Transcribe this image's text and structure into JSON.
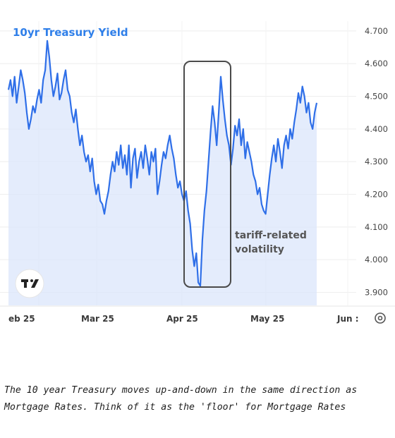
{
  "chart_data": {
    "type": "line",
    "title": "10yr Treasury Yield",
    "series_color": "#2f6fe8",
    "area_fill_color": "#dbe6fb",
    "x_tick_labels": [
      "eb 25",
      "Mar 25",
      "Apr 25",
      "May 25",
      "Jun :"
    ],
    "y_tick_labels": [
      "4.700",
      "4.600",
      "4.500",
      "4.400",
      "4.300",
      "4.200",
      "4.100",
      "4.000",
      "3.900"
    ],
    "ylim": [
      3.86,
      4.73
    ],
    "grid": true,
    "annotation": {
      "lines": [
        "tariff-related",
        "volatility"
      ]
    },
    "logo": "TV",
    "settings_icon": "gear-icon",
    "x_index_range": [
      0,
      160
    ],
    "x_tick_index": [
      4,
      47,
      89,
      131,
      173
    ],
    "annotation_box_index": [
      0.0,
      0.0
    ],
    "series": [
      {
        "values": [
          4.52,
          4.55,
          4.5,
          4.56,
          4.48,
          4.53,
          4.58,
          4.55,
          4.51,
          4.45,
          4.4,
          4.43,
          4.47,
          4.45,
          4.49,
          4.52,
          4.48,
          4.55,
          4.58,
          4.67,
          4.62,
          4.55,
          4.5,
          4.53,
          4.57,
          4.49,
          4.51,
          4.55,
          4.58,
          4.52,
          4.5,
          4.45,
          4.42,
          4.46,
          4.4,
          4.35,
          4.38,
          4.33,
          4.3,
          4.32,
          4.27,
          4.31,
          4.24,
          4.2,
          4.23,
          4.18,
          4.17,
          4.14,
          4.18,
          4.21,
          4.26,
          4.3,
          4.27,
          4.33,
          4.29,
          4.35,
          4.28,
          4.32,
          4.26,
          4.35,
          4.22,
          4.31,
          4.34,
          4.25,
          4.3,
          4.33,
          4.28,
          4.35,
          4.31,
          4.26,
          4.33,
          4.3,
          4.34,
          4.2,
          4.24,
          4.29,
          4.33,
          4.31,
          4.35,
          4.38,
          4.34,
          4.31,
          4.26,
          4.22,
          4.24,
          4.2,
          4.18,
          4.21,
          4.15,
          4.11,
          4.03,
          3.98,
          4.02,
          3.93,
          3.92,
          4.06,
          4.15,
          4.21,
          4.3,
          4.39,
          4.47,
          4.42,
          4.35,
          4.45,
          4.56,
          4.49,
          4.43,
          4.38,
          4.35,
          4.29,
          4.34,
          4.41,
          4.38,
          4.43,
          4.35,
          4.4,
          4.31,
          4.36,
          4.33,
          4.3,
          4.26,
          4.24,
          4.2,
          4.22,
          4.17,
          4.15,
          4.14,
          4.2,
          4.26,
          4.31,
          4.35,
          4.3,
          4.37,
          4.33,
          4.28,
          4.35,
          4.38,
          4.34,
          4.4,
          4.37,
          4.42,
          4.46,
          4.51,
          4.48,
          4.53,
          4.5,
          4.45,
          4.48,
          4.42,
          4.4,
          4.45,
          4.48
        ]
      }
    ]
  },
  "caption": {
    "line1": "The 10 year Treasury moves up-and-down in the same direction as",
    "line2": "Mortgage Rates. Think of it as the 'floor' for Mortgage Rates"
  }
}
